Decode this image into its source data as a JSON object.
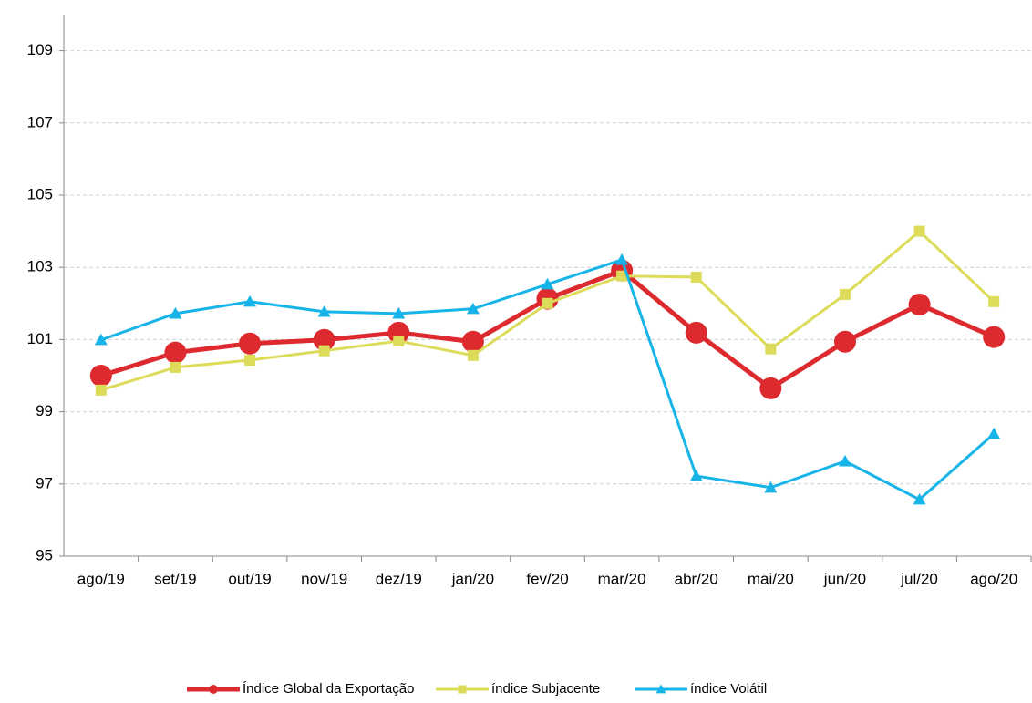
{
  "chart_data": {
    "type": "line",
    "categories": [
      "ago/19",
      "set/19",
      "out/19",
      "nov/19",
      "dez/19",
      "jan/20",
      "fev/20",
      "mar/20",
      "abr/20",
      "mai/20",
      "jun/20",
      "jul/20",
      "ago/20"
    ],
    "series": [
      {
        "name": "Índice Global da Exportação",
        "color": "#dc2a2e",
        "marker": "circle",
        "values": [
          100.0,
          100.64,
          100.89,
          100.99,
          101.19,
          100.94,
          102.13,
          102.91,
          101.19,
          99.65,
          100.94,
          101.97,
          101.07
        ]
      },
      {
        "name": "índice Subjacente",
        "color": "#dcdc5a",
        "marker": "square",
        "values": [
          99.6,
          100.23,
          100.43,
          100.69,
          100.96,
          100.56,
          102.0,
          102.76,
          102.73,
          100.74,
          102.25,
          104.0,
          102.05
        ]
      },
      {
        "name": "índice Volátil",
        "color": "#16b4e8",
        "marker": "triangle",
        "values": [
          100.99,
          101.72,
          102.05,
          101.77,
          101.72,
          101.85,
          102.53,
          103.21,
          97.22,
          96.9,
          97.63,
          96.57,
          98.39
        ]
      }
    ],
    "ylim": [
      95,
      110
    ],
    "yticks": [
      95,
      97,
      99,
      101,
      103,
      105,
      107,
      109
    ],
    "grid": true,
    "legend": "bottom"
  }
}
